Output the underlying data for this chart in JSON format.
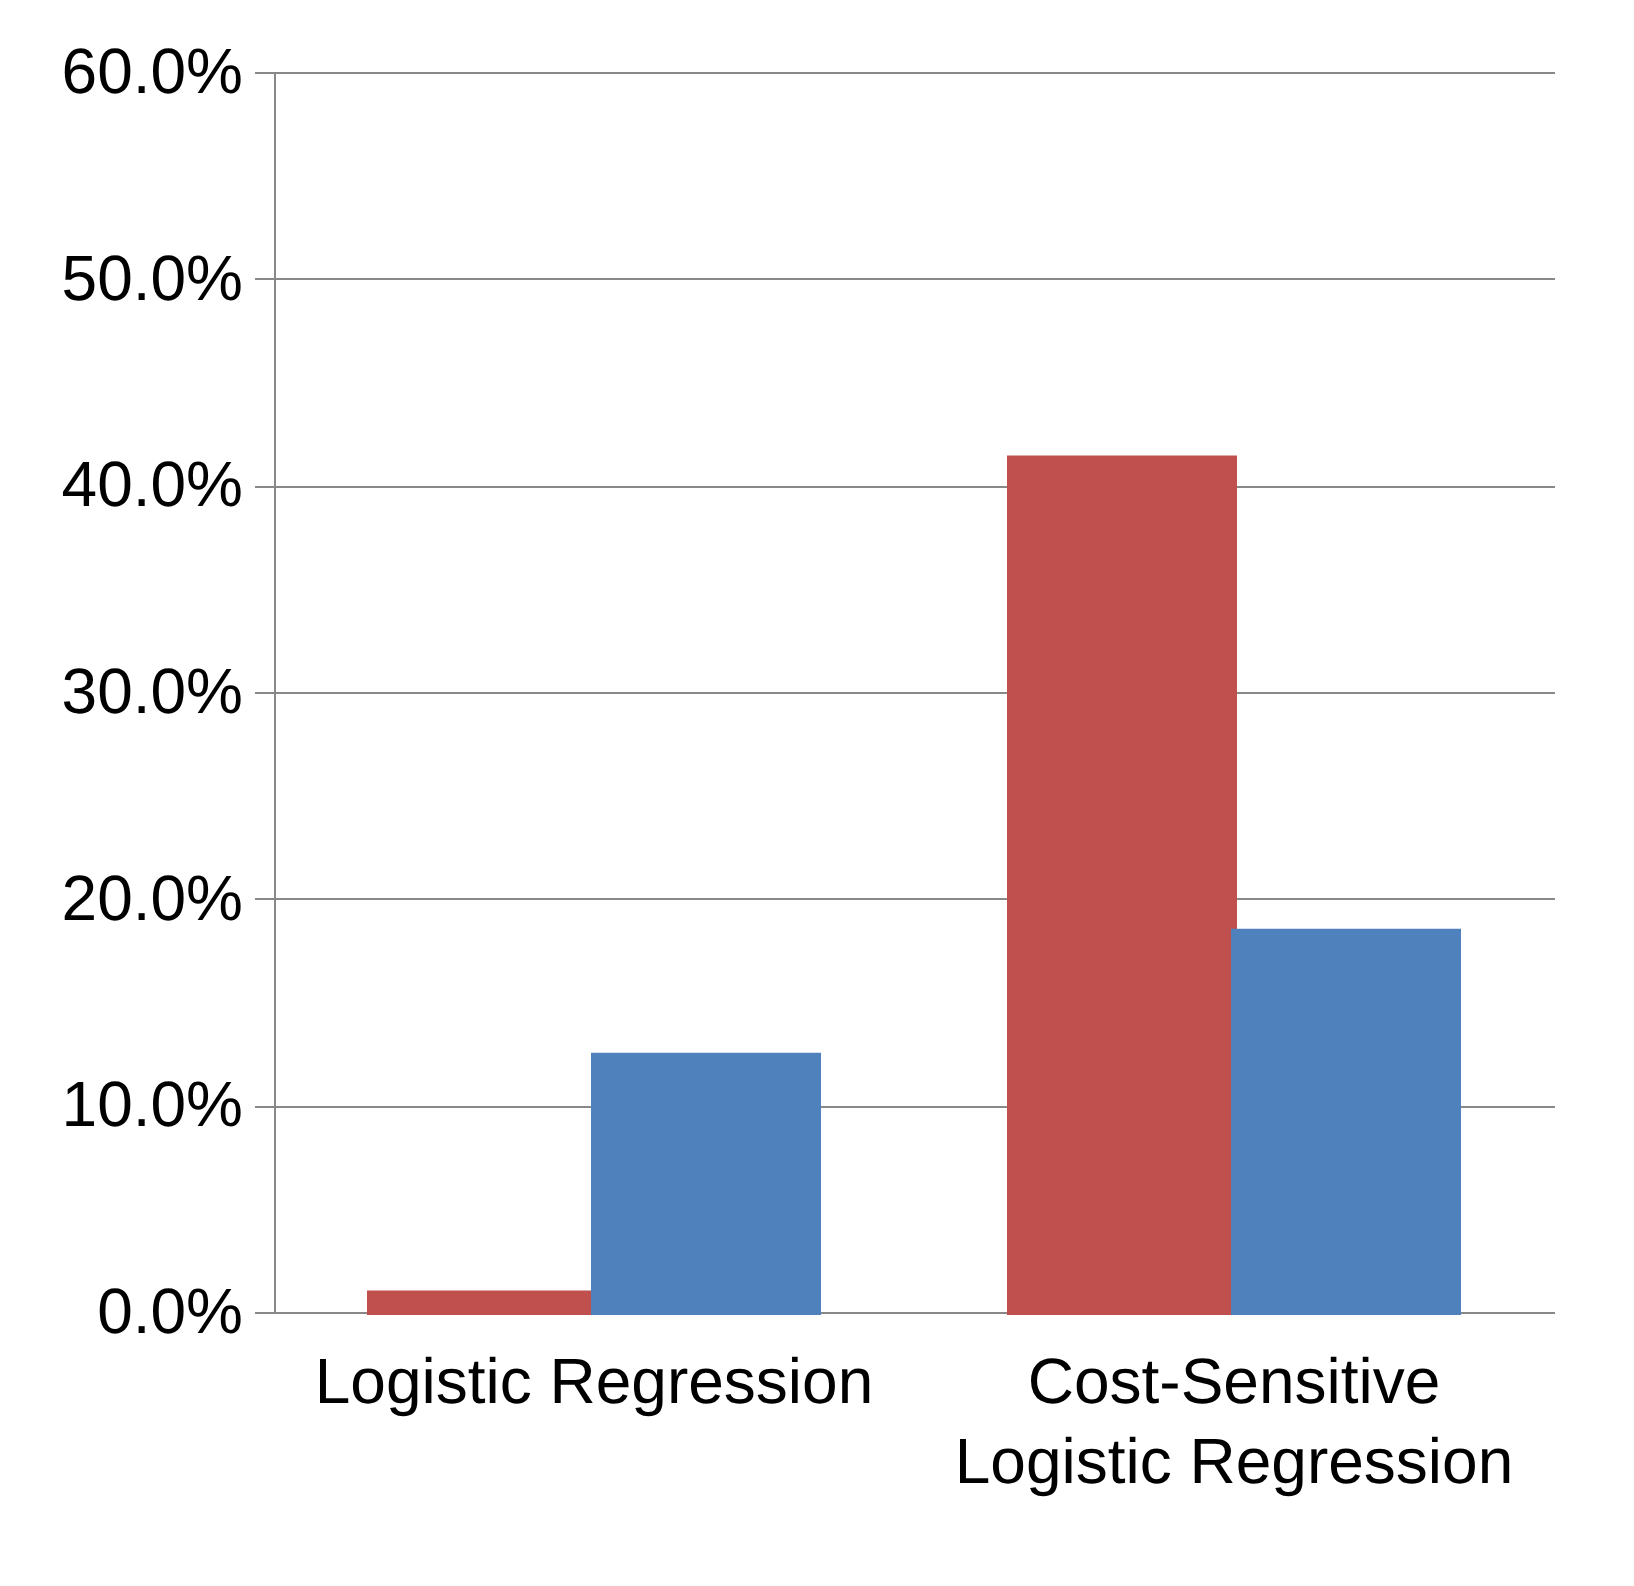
{
  "chart_data": {
    "type": "bar",
    "categories": [
      "Logistic Regression",
      "Cost-Sensitive Logistic Regression"
    ],
    "series": [
      {
        "color": "#c0504d",
        "values": [
          0.9,
          41.3
        ]
      },
      {
        "color": "#4f81bd",
        "values": [
          12.4,
          18.4
        ]
      }
    ],
    "ylim": [
      0,
      60
    ],
    "yticks": [
      {
        "value": 0,
        "label": "0.0%"
      },
      {
        "value": 10,
        "label": "10.0%"
      },
      {
        "value": 20,
        "label": "20.0%"
      },
      {
        "value": 30,
        "label": "30.0%"
      },
      {
        "value": 40,
        "label": "40.0%"
      },
      {
        "value": 50,
        "label": "50.0%"
      },
      {
        "value": 60,
        "label": "60.0%"
      }
    ],
    "grid": "y"
  }
}
